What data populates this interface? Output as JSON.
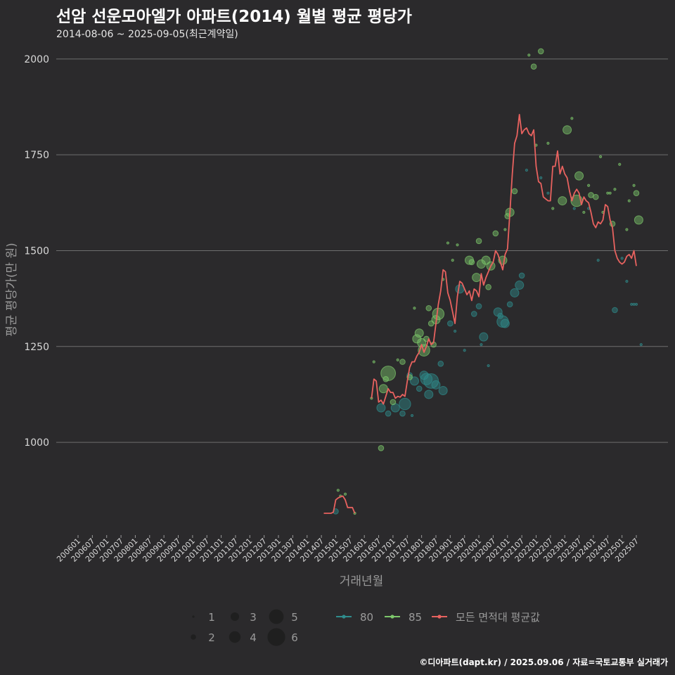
{
  "title": "선암 선운모아엘가 아파트(2014) 월별 평균 평당가",
  "subtitle": "2014-08-06 ~ 2025-09-05(최근계약일)",
  "caption": "©디아파트(dapt.kr) / 2025.09.06 / 자료=국토교통부 실거래가",
  "colors": {
    "background": "#2b2a2c",
    "grid": "#6e6e6e",
    "area80": "#2f8c8c",
    "area85": "#7dc76b",
    "avg": "#e8625f"
  },
  "chart_data": {
    "type": "scatter",
    "xlabel": "거래년월",
    "ylabel": "평균 평당가(만 원)",
    "x_range": [
      "2006-01",
      "2025-09"
    ],
    "ylim": [
      760,
      2040
    ],
    "y_ticks": [
      1000,
      1250,
      1500,
      1750,
      2000
    ],
    "x_ticks": [
      "200601",
      "200607",
      "200701",
      "200707",
      "200801",
      "200807",
      "200901",
      "200907",
      "201001",
      "201007",
      "201101",
      "201107",
      "201201",
      "201207",
      "201301",
      "201307",
      "201401",
      "201407",
      "201501",
      "201507",
      "201601",
      "201607",
      "201701",
      "201707",
      "201801",
      "201807",
      "201901",
      "201907",
      "202001",
      "202007",
      "202101",
      "202107",
      "202201",
      "202207",
      "202301",
      "202307",
      "202401",
      "202407",
      "202501",
      "202507"
    ],
    "legend": {
      "position": "bottom",
      "size_labels": [
        "1",
        "2",
        "3",
        "4",
        "5",
        "6"
      ],
      "series_labels": [
        "80",
        "85",
        "모든 면적대 평균값"
      ]
    },
    "series": [
      {
        "name": "80",
        "kind": "points",
        "points": [
          [
            "2015-01",
            820,
            2
          ],
          [
            "2016-08",
            1090,
            3
          ],
          [
            "2016-11",
            1075,
            2
          ],
          [
            "2017-02",
            1090,
            3
          ],
          [
            "2017-05",
            1075,
            2
          ],
          [
            "2017-06",
            1100,
            4
          ],
          [
            "2017-08",
            1175,
            2
          ],
          [
            "2017-09",
            1070,
            1
          ],
          [
            "2017-10",
            1160,
            3
          ],
          [
            "2017-12",
            1140,
            2
          ],
          [
            "2018-02",
            1175,
            3
          ],
          [
            "2018-03",
            1165,
            4
          ],
          [
            "2018-04",
            1125,
            3
          ],
          [
            "2018-05",
            1160,
            5
          ],
          [
            "2018-07",
            1150,
            3
          ],
          [
            "2018-09",
            1205,
            2
          ],
          [
            "2018-10",
            1135,
            3
          ],
          [
            "2019-01",
            1310,
            2
          ],
          [
            "2019-03",
            1290,
            1
          ],
          [
            "2019-05",
            1400,
            3
          ],
          [
            "2019-07",
            1240,
            1
          ],
          [
            "2019-11",
            1335,
            2
          ],
          [
            "2020-01",
            1355,
            2
          ],
          [
            "2020-02",
            1255,
            1
          ],
          [
            "2020-03",
            1275,
            3
          ],
          [
            "2020-05",
            1200,
            1
          ],
          [
            "2020-09",
            1340,
            3
          ],
          [
            "2020-10",
            1330,
            2
          ],
          [
            "2020-11",
            1315,
            4
          ],
          [
            "2020-12",
            1310,
            3
          ],
          [
            "2021-02",
            1360,
            2
          ],
          [
            "2021-04",
            1390,
            3
          ],
          [
            "2021-06",
            1410,
            3
          ],
          [
            "2021-07",
            1435,
            2
          ],
          [
            "2021-09",
            1710,
            1
          ],
          [
            "2022-03",
            1690,
            1
          ],
          [
            "2022-06",
            1650,
            1
          ],
          [
            "2023-05",
            1610,
            1
          ],
          [
            "2023-11",
            1610,
            1
          ],
          [
            "2024-03",
            1475,
            1
          ],
          [
            "2024-10",
            1345,
            2
          ],
          [
            "2025-01",
            1480,
            1
          ],
          [
            "2025-03",
            1420,
            1
          ],
          [
            "2025-05",
            1360,
            1
          ],
          [
            "2025-06",
            1360,
            1
          ],
          [
            "2025-07",
            1360,
            1
          ],
          [
            "2025-09",
            1255,
            1
          ]
        ]
      },
      {
        "name": "85",
        "kind": "points",
        "points": [
          [
            "2015-02",
            875,
            1
          ],
          [
            "2015-03",
            860,
            1
          ],
          [
            "2015-05",
            865,
            1
          ],
          [
            "2015-09",
            815,
            1
          ],
          [
            "2016-04",
            1115,
            1
          ],
          [
            "2016-05",
            1210,
            1
          ],
          [
            "2016-08",
            985,
            2
          ],
          [
            "2016-09",
            1140,
            3
          ],
          [
            "2016-10",
            1165,
            2
          ],
          [
            "2016-11",
            1180,
            5
          ],
          [
            "2017-01",
            1105,
            2
          ],
          [
            "2017-03",
            1215,
            1
          ],
          [
            "2017-05",
            1210,
            2
          ],
          [
            "2017-08",
            1170,
            2
          ],
          [
            "2017-10",
            1350,
            1
          ],
          [
            "2017-11",
            1270,
            3
          ],
          [
            "2017-12",
            1285,
            3
          ],
          [
            "2018-01",
            1260,
            3
          ],
          [
            "2018-02",
            1240,
            4
          ],
          [
            "2018-03",
            1270,
            2
          ],
          [
            "2018-04",
            1350,
            2
          ],
          [
            "2018-05",
            1310,
            2
          ],
          [
            "2018-06",
            1255,
            2
          ],
          [
            "2018-07",
            1320,
            3
          ],
          [
            "2018-08",
            1335,
            4
          ],
          [
            "2018-10",
            1425,
            1
          ],
          [
            "2018-12",
            1520,
            1
          ],
          [
            "2019-02",
            1475,
            1
          ],
          [
            "2019-04",
            1515,
            1
          ],
          [
            "2019-09",
            1475,
            3
          ],
          [
            "2019-10",
            1470,
            2
          ],
          [
            "2019-12",
            1430,
            3
          ],
          [
            "2020-01",
            1525,
            2
          ],
          [
            "2020-02",
            1465,
            3
          ],
          [
            "2020-04",
            1475,
            3
          ],
          [
            "2020-05",
            1405,
            2
          ],
          [
            "2020-06",
            1460,
            3
          ],
          [
            "2020-08",
            1545,
            2
          ],
          [
            "2020-11",
            1475,
            3
          ],
          [
            "2020-12",
            1555,
            1
          ],
          [
            "2021-01",
            1590,
            2
          ],
          [
            "2021-02",
            1600,
            3
          ],
          [
            "2021-04",
            1655,
            2
          ],
          [
            "2021-10",
            2010,
            1
          ],
          [
            "2021-12",
            1980,
            2
          ],
          [
            "2022-01",
            1775,
            1
          ],
          [
            "2022-03",
            2020,
            2
          ],
          [
            "2022-06",
            1780,
            1
          ],
          [
            "2022-08",
            1610,
            1
          ],
          [
            "2022-12",
            1630,
            3
          ],
          [
            "2023-02",
            1815,
            3
          ],
          [
            "2023-04",
            1845,
            1
          ],
          [
            "2023-06",
            1630,
            4
          ],
          [
            "2023-07",
            1695,
            3
          ],
          [
            "2023-09",
            1600,
            1
          ],
          [
            "2023-11",
            1670,
            1
          ],
          [
            "2023-12",
            1645,
            2
          ],
          [
            "2024-02",
            1640,
            2
          ],
          [
            "2024-04",
            1745,
            1
          ],
          [
            "2024-05",
            1600,
            1
          ],
          [
            "2024-07",
            1650,
            1
          ],
          [
            "2024-08",
            1650,
            1
          ],
          [
            "2024-09",
            1570,
            2
          ],
          [
            "2024-10",
            1660,
            1
          ],
          [
            "2024-12",
            1725,
            1
          ],
          [
            "2025-03",
            1555,
            1
          ],
          [
            "2025-04",
            1630,
            1
          ],
          [
            "2025-06",
            1670,
            1
          ],
          [
            "2025-07",
            1650,
            2
          ],
          [
            "2025-08",
            1580,
            3
          ]
        ]
      },
      {
        "name": "모든 면적대 평균값",
        "kind": "line",
        "points": [
          [
            "2014-08",
            815
          ],
          [
            "2014-09",
            815
          ],
          [
            "2014-10",
            815
          ],
          [
            "2014-11",
            815
          ],
          [
            "2014-12",
            818
          ],
          [
            "2015-01",
            850
          ],
          [
            "2015-02",
            855
          ],
          [
            "2015-03",
            858
          ],
          [
            "2015-04",
            860
          ],
          [
            "2015-05",
            850
          ],
          [
            "2015-06",
            830
          ],
          [
            "2015-07",
            830
          ],
          [
            "2015-08",
            830
          ],
          [
            "2015-09",
            815
          ],
          [
            "2016-04",
            1115
          ],
          [
            "2016-05",
            1165
          ],
          [
            "2016-06",
            1160
          ],
          [
            "2016-07",
            1105
          ],
          [
            "2016-08",
            1110
          ],
          [
            "2016-09",
            1100
          ],
          [
            "2016-10",
            1120
          ],
          [
            "2016-11",
            1140
          ],
          [
            "2016-12",
            1130
          ],
          [
            "2017-01",
            1130
          ],
          [
            "2017-02",
            1115
          ],
          [
            "2017-03",
            1120
          ],
          [
            "2017-04",
            1118
          ],
          [
            "2017-05",
            1125
          ],
          [
            "2017-06",
            1120
          ],
          [
            "2017-07",
            1160
          ],
          [
            "2017-08",
            1195
          ],
          [
            "2017-09",
            1210
          ],
          [
            "2017-10",
            1210
          ],
          [
            "2017-11",
            1225
          ],
          [
            "2017-12",
            1235
          ],
          [
            "2018-01",
            1255
          ],
          [
            "2018-02",
            1235
          ],
          [
            "2018-03",
            1250
          ],
          [
            "2018-04",
            1270
          ],
          [
            "2018-05",
            1255
          ],
          [
            "2018-06",
            1260
          ],
          [
            "2018-07",
            1310
          ],
          [
            "2018-08",
            1360
          ],
          [
            "2018-09",
            1395
          ],
          [
            "2018-10",
            1450
          ],
          [
            "2018-11",
            1445
          ],
          [
            "2018-12",
            1390
          ],
          [
            "2019-01",
            1370
          ],
          [
            "2019-02",
            1340
          ],
          [
            "2019-03",
            1310
          ],
          [
            "2019-04",
            1380
          ],
          [
            "2019-05",
            1420
          ],
          [
            "2019-06",
            1415
          ],
          [
            "2019-07",
            1400
          ],
          [
            "2019-08",
            1385
          ],
          [
            "2019-09",
            1395
          ],
          [
            "2019-10",
            1370
          ],
          [
            "2019-11",
            1400
          ],
          [
            "2019-12",
            1395
          ],
          [
            "2020-01",
            1380
          ],
          [
            "2020-02",
            1440
          ],
          [
            "2020-03",
            1410
          ],
          [
            "2020-04",
            1430
          ],
          [
            "2020-05",
            1445
          ],
          [
            "2020-06",
            1460
          ],
          [
            "2020-07",
            1470
          ],
          [
            "2020-08",
            1500
          ],
          [
            "2020-09",
            1490
          ],
          [
            "2020-10",
            1470
          ],
          [
            "2020-11",
            1450
          ],
          [
            "2020-12",
            1490
          ],
          [
            "2021-01",
            1505
          ],
          [
            "2021-02",
            1600
          ],
          [
            "2021-03",
            1700
          ],
          [
            "2021-04",
            1780
          ],
          [
            "2021-05",
            1800
          ],
          [
            "2021-06",
            1855
          ],
          [
            "2021-07",
            1805
          ],
          [
            "2021-08",
            1815
          ],
          [
            "2021-09",
            1820
          ],
          [
            "2021-10",
            1805
          ],
          [
            "2021-11",
            1800
          ],
          [
            "2021-12",
            1815
          ],
          [
            "2022-01",
            1720
          ],
          [
            "2022-02",
            1680
          ],
          [
            "2022-03",
            1675
          ],
          [
            "2022-04",
            1640
          ],
          [
            "2022-05",
            1635
          ],
          [
            "2022-06",
            1630
          ],
          [
            "2022-07",
            1630
          ],
          [
            "2022-08",
            1720
          ],
          [
            "2022-09",
            1720
          ],
          [
            "2022-10",
            1760
          ],
          [
            "2022-11",
            1700
          ],
          [
            "2022-12",
            1720
          ],
          [
            "2023-01",
            1700
          ],
          [
            "2023-02",
            1690
          ],
          [
            "2023-03",
            1655
          ],
          [
            "2023-04",
            1630
          ],
          [
            "2023-05",
            1650
          ],
          [
            "2023-06",
            1660
          ],
          [
            "2023-07",
            1650
          ],
          [
            "2023-08",
            1620
          ],
          [
            "2023-09",
            1640
          ],
          [
            "2023-10",
            1630
          ],
          [
            "2023-11",
            1625
          ],
          [
            "2023-12",
            1600
          ],
          [
            "2024-01",
            1570
          ],
          [
            "2024-02",
            1560
          ],
          [
            "2024-03",
            1575
          ],
          [
            "2024-04",
            1570
          ],
          [
            "2024-05",
            1580
          ],
          [
            "2024-06",
            1620
          ],
          [
            "2024-07",
            1615
          ],
          [
            "2024-08",
            1580
          ],
          [
            "2024-09",
            1560
          ],
          [
            "2024-10",
            1500
          ],
          [
            "2024-11",
            1480
          ],
          [
            "2024-12",
            1470
          ],
          [
            "2025-01",
            1465
          ],
          [
            "2025-02",
            1470
          ],
          [
            "2025-03",
            1485
          ],
          [
            "2025-04",
            1490
          ],
          [
            "2025-05",
            1480
          ],
          [
            "2025-06",
            1500
          ],
          [
            "2025-07",
            1460
          ]
        ]
      }
    ]
  }
}
